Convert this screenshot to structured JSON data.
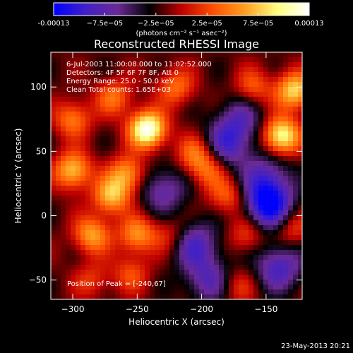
{
  "chart_data": {
    "type": "heatmap",
    "title": "Reconstructed RHESSI Image",
    "xlabel": "Heliocentric X (arcsec)",
    "ylabel": "Heliocentric Y (arcsec)",
    "xlim": [
      -317,
      -122
    ],
    "ylim": [
      -65,
      127
    ],
    "x_ticks": [
      -300,
      -250,
      -200,
      -150
    ],
    "y_ticks": [
      -50,
      0,
      50,
      100
    ],
    "colorbar": {
      "min": -0.00013,
      "max": 0.00013,
      "tick_labels": [
        "-0.00013",
        "−7.5e−05",
        "−2.5e−05",
        "2.5e−05",
        "7.5e−05",
        "0.00013"
      ],
      "unit_label": "(photons cm⁻² s⁻¹ asec⁻²)",
      "colors": [
        "#0000ff",
        "#4020c8",
        "#6a2a96",
        "#000000",
        "#c00000",
        "#ff5000",
        "#ffa020",
        "#ffff80",
        "#ffffff"
      ]
    },
    "sources": [
      {
        "x": -242,
        "y": 67,
        "peak": 1.0
      },
      {
        "x": -138,
        "y": 62,
        "peak": 0.85
      },
      {
        "x": -128,
        "y": 97,
        "peak": 0.7
      },
      {
        "x": -300,
        "y": 35,
        "peak": 0.65
      },
      {
        "x": -270,
        "y": 15,
        "peak": 0.6
      },
      {
        "x": -285,
        "y": -15,
        "peak": 0.55
      },
      {
        "x": -258,
        "y": 32,
        "peak": 0.55
      },
      {
        "x": -250,
        "y": -15,
        "peak": 0.5
      },
      {
        "x": -300,
        "y": 75,
        "peak": 0.45
      },
      {
        "x": -268,
        "y": 92,
        "peak": 0.4
      },
      {
        "x": -220,
        "y": 100,
        "peak": 0.4
      },
      {
        "x": -205,
        "y": 48,
        "peak": 0.4
      },
      {
        "x": -195,
        "y": 35,
        "peak": 0.35
      },
      {
        "x": -160,
        "y": 100,
        "peak": 0.35
      },
      {
        "x": -180,
        "y": 15,
        "peak": 0.35
      },
      {
        "x": -255,
        "y": -45,
        "peak": 0.3
      },
      {
        "x": -165,
        "y": -15,
        "peak": 0.3
      },
      {
        "x": -172,
        "y": -55,
        "peak": 0.25
      },
      {
        "x": -130,
        "y": -10,
        "peak": 0.3
      },
      {
        "x": -285,
        "y": -50,
        "peak": 0.25
      },
      {
        "x": -225,
        "y": -15,
        "peak": 0.25
      }
    ],
    "negatives": [
      {
        "x": -148,
        "y": 8,
        "depth": 0.75
      },
      {
        "x": -205,
        "y": -22,
        "depth": 0.45
      },
      {
        "x": -140,
        "y": -40,
        "depth": 0.5
      },
      {
        "x": -230,
        "y": 20,
        "depth": 0.4
      },
      {
        "x": -180,
        "y": 55,
        "depth": 0.45
      },
      {
        "x": -150,
        "y": 30,
        "depth": 0.4
      },
      {
        "x": -195,
        "y": -50,
        "depth": 0.4
      },
      {
        "x": -170,
        "y": 75,
        "depth": 0.35
      }
    ],
    "overlay_text": [
      "6-Jul-2003 11:00:08.000 to 11:02:52.000",
      "Detectors: 4F 5F 6F 7F 8F, Att 0",
      "Energy Range: 25.0 - 50.0 keV",
      "Clean    Total counts: 1.65E+03"
    ],
    "peak_text": "Position of Peak = [-240,67]"
  },
  "footer": "23-May-2013 20:21"
}
